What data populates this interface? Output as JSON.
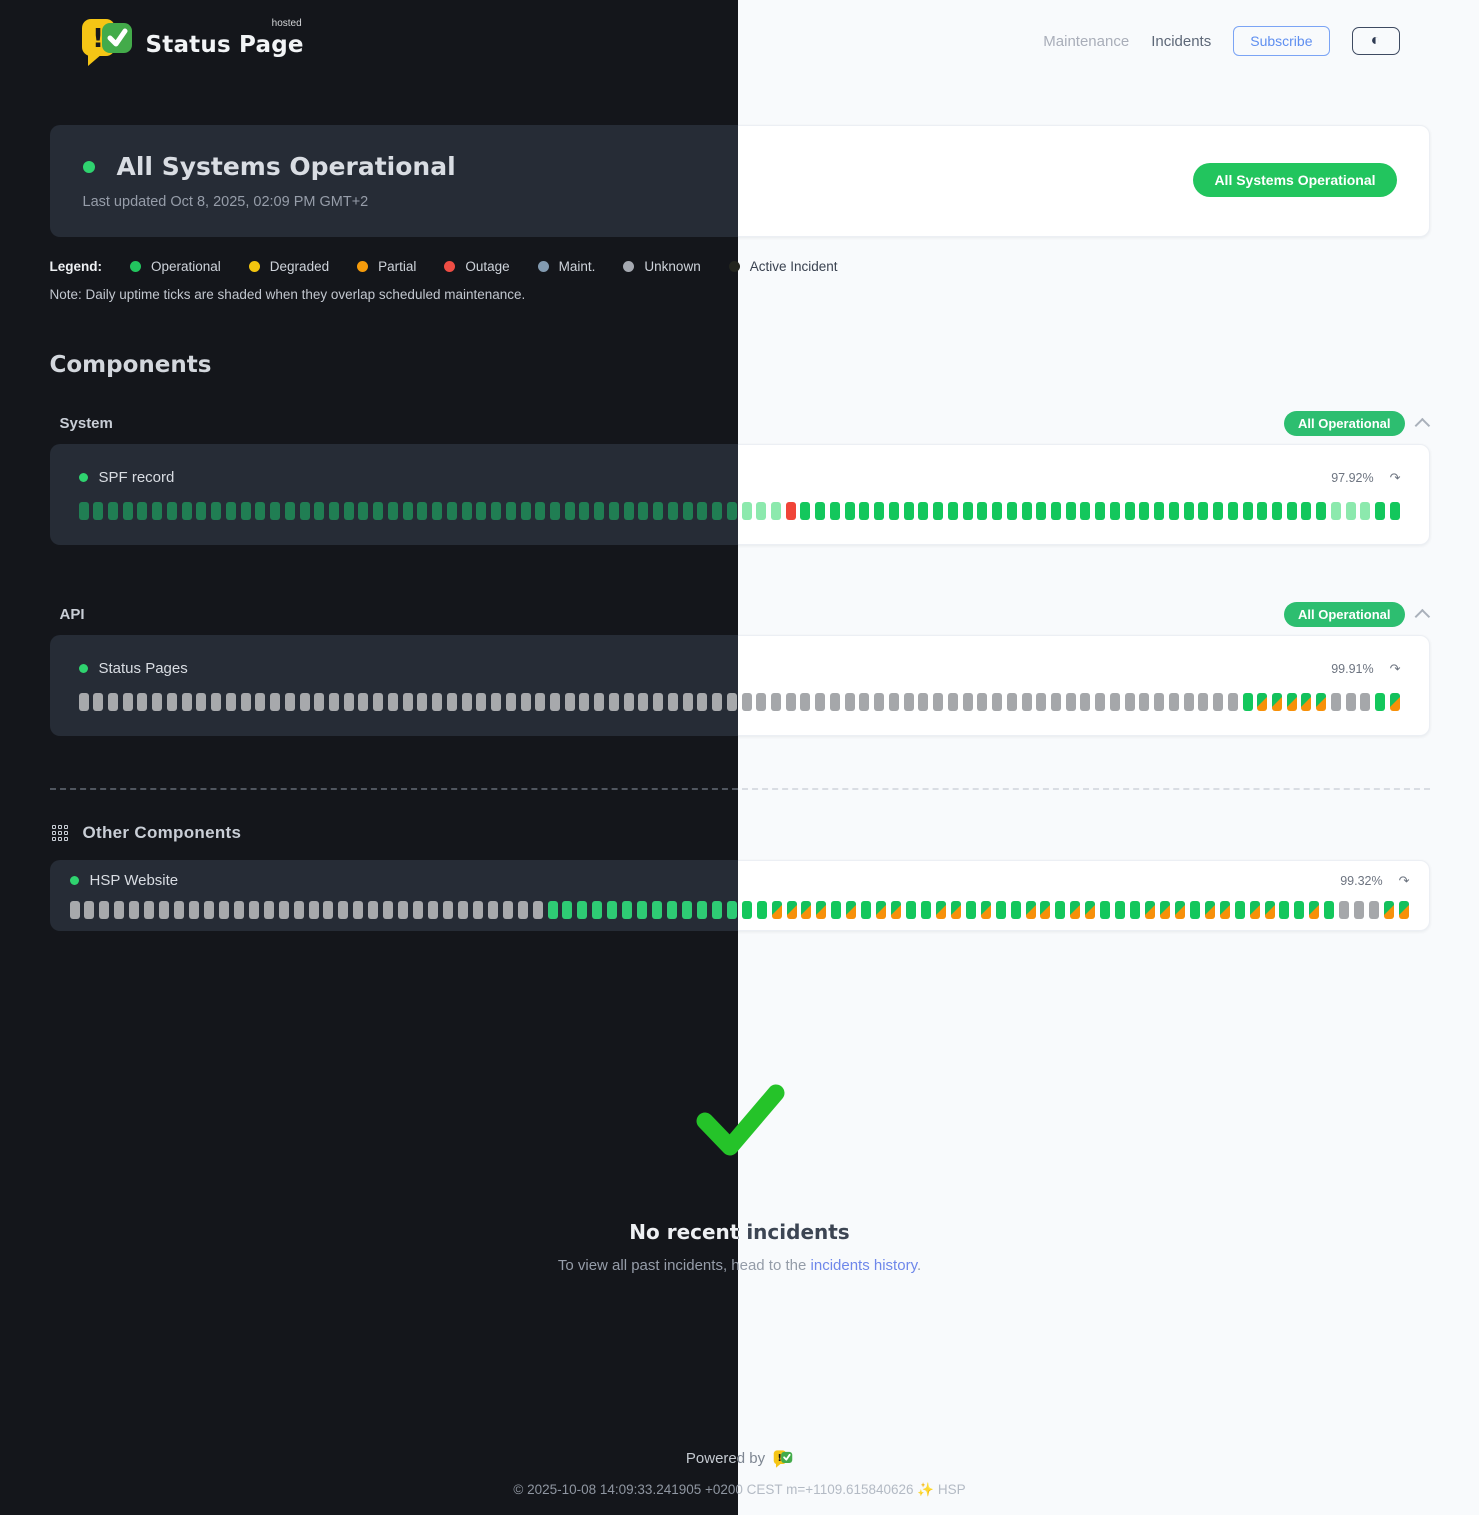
{
  "header": {
    "brand": {
      "name": "Status Page",
      "superscript": "hosted"
    },
    "nav": [
      {
        "label": "Maintenance"
      },
      {
        "label": "Incidents"
      }
    ],
    "subscribe_label": "Subscribe",
    "theme_toggle_icon": "◐"
  },
  "status": {
    "title": "All Systems Operational",
    "dot_color": "#2fd36f",
    "last_updated": "Last updated Oct 8, 2025, 02:09 PM GMT+2",
    "badge": "All Systems Operational",
    "badge_color": "#22c55e"
  },
  "legend": {
    "label": "Legend:",
    "items": [
      {
        "label": "Operational",
        "color": "#22c55e"
      },
      {
        "label": "Degraded",
        "color": "#f2c40f"
      },
      {
        "label": "Partial",
        "color": "#f59b0b"
      },
      {
        "label": "Outage",
        "color": "#ef4d44"
      },
      {
        "label": "Maint.",
        "color": "#829ab0"
      },
      {
        "label": "Unknown",
        "color": "#a5a9b1"
      },
      {
        "label": "Active Incident",
        "color": "#23251f"
      }
    ],
    "note": "Note: Daily uptime ticks are shaded when they overlap scheduled maintenance."
  },
  "components": {
    "heading": "Components",
    "tick_legend": {
      "g": "operational",
      "G": "operational-light",
      "r": "outage",
      "u": "unknown",
      "m": "maintenance-overlap"
    },
    "groups": [
      {
        "name": "System",
        "badge": "All Operational",
        "components": [
          {
            "id": "spf",
            "name": "SPF record",
            "dot_color": "#2fd36f",
            "uptime": "97.92%",
            "refresh_icon": "↷",
            "ticks": "gggggggggggggggggggggggggggggggggggggggggggggGGGrggggggggggggggggggggggggggggggggggggGGGgg"
          }
        ]
      },
      {
        "name": "API",
        "badge": "All Operational",
        "components": [
          {
            "id": "status-pages",
            "name": "Status Pages",
            "dot_color": "#2fd36f",
            "uptime": "99.91%",
            "refresh_icon": "↷",
            "ticks": "uuuuuuuuuuuuuuuuuuuuuuuuuuuuuuuuuuuuuuuuuuuuuuuuuuuuuuuuuuuuuuuuuuuuuuuuuuuuuuugmmmmmuuugm"
          }
        ]
      }
    ],
    "other": {
      "heading": "Other Components",
      "components": [
        {
          "id": "hsp-website",
          "name": "HSP Website",
          "dot_color": "#2fd36f",
          "uptime": "99.32%",
          "refresh_icon": "↷",
          "ticks": "uuuuuuuuuuuuuuuuuuuuuuuuuuuuuuuugggggggggggggggmmmmgmgmmggmmgmggmmgmmgggmmmgmmgmmggmguuumm"
        }
      ]
    }
  },
  "incidents": {
    "title": "No recent incidents",
    "subtext_prefix": "To view all past incidents, head to the ",
    "link_label": "incidents history",
    "subtext_suffix": "."
  },
  "footer": {
    "powered_by": "Powered by",
    "copyright": "© 2025-10-08 14:09:33.241905 +0200 CEST m=+1109.615840626 ✨ HSP"
  }
}
